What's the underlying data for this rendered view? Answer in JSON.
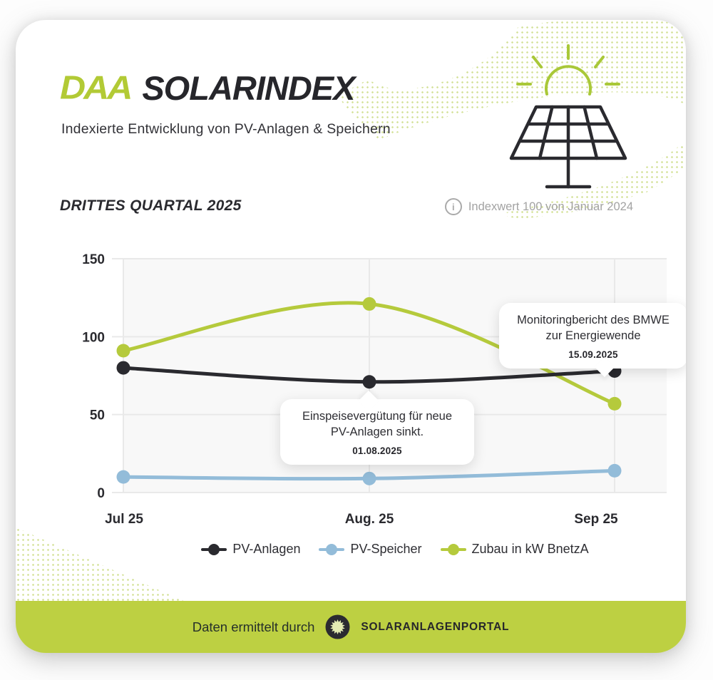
{
  "header": {
    "logo_text": "DAA",
    "title": "SOLARINDEX",
    "subtitle": "Indexierte Entwicklung von PV-Anlagen & Speichern"
  },
  "section": {
    "title": "DRITTES QUARTAL 2025",
    "index_note": "Indexwert 100 von Januar 2024"
  },
  "chart_data": {
    "type": "line",
    "title": "DRITTES QUARTAL 2025",
    "categories": [
      "Jul 25",
      "Aug. 25",
      "Sep 25"
    ],
    "series": [
      {
        "name": "PV-Anlagen",
        "color": "#2a2a2f",
        "values": [
          80,
          71,
          78
        ]
      },
      {
        "name": "PV-Speicher",
        "color": "#93bcd9",
        "values": [
          10,
          9,
          14
        ]
      },
      {
        "name": "Zubau in kW BnetzA",
        "color": "#b5ca3c",
        "values": [
          91,
          121,
          57
        ]
      }
    ],
    "ylim": [
      0,
      150
    ],
    "yticks": [
      0,
      50,
      100,
      150
    ],
    "grid": true,
    "legend_position": "bottom",
    "annotations": [
      {
        "line1": "Einspeisevergütung für  neue",
        "line2": "PV-Anlagen sinkt.",
        "date": "01.08.2025",
        "anchor_category": "Aug. 25",
        "anchor_series": "PV-Anlagen"
      },
      {
        "line1": "Monitoringbericht des BMWE",
        "line2": "zur Energiewende",
        "date": "15.09.2025",
        "anchor_category": "Sep 25",
        "anchor_series": "PV-Anlagen"
      }
    ]
  },
  "footer": {
    "text": "Daten ermittelt durch",
    "brand": "SOLARANLAGENPORTAL",
    "icon": "sunburst-icon"
  },
  "colors": {
    "accent_lime": "#b5ca3c",
    "footer_band": "#bdd042",
    "series_black": "#2a2a2f",
    "series_blue": "#93bcd9",
    "grid": "#e9e9e9",
    "plot_bg": "#f8f8f8",
    "muted_text": "#a3a3a3"
  }
}
